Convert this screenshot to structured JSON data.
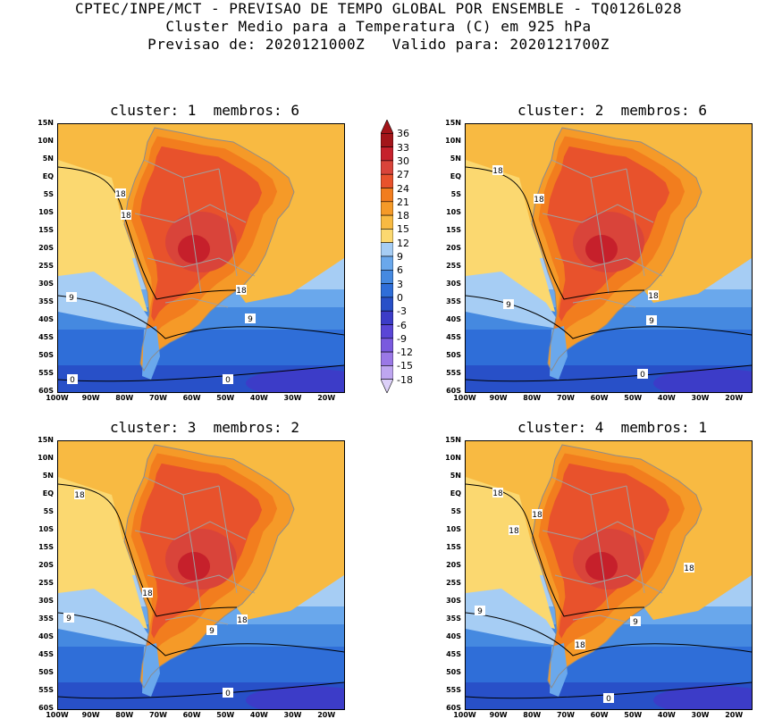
{
  "header": {
    "line1": "CPTEC/INPE/MCT - PREVISAO DE TEMPO GLOBAL POR ENSEMBLE - TQ0126L028",
    "line2": "Cluster Medio para a Temperatura (C) em 925 hPa",
    "line3": "Previsao de: 2020121000Z   Valido para: 2020121700Z"
  },
  "panels": [
    {
      "title": "cluster: 1  membros: 6",
      "contour_labels": [
        "18",
        "18",
        "18",
        "9",
        "9",
        "0",
        "0"
      ]
    },
    {
      "title": "cluster: 2  membros: 6",
      "contour_labels": [
        "18",
        "18",
        "18",
        "9",
        "9",
        "0"
      ]
    },
    {
      "title": "cluster: 3  membros: 2",
      "contour_labels": [
        "18",
        "18",
        "18",
        "9",
        "9",
        "0"
      ]
    },
    {
      "title": "cluster: 4  membros: 1",
      "contour_labels": [
        "18",
        "18",
        "18",
        "18",
        "9",
        "9",
        "18",
        "0"
      ]
    }
  ],
  "axes": {
    "lat_ticks": [
      "15N",
      "10N",
      "5N",
      "EQ",
      "5S",
      "10S",
      "15S",
      "20S",
      "25S",
      "30S",
      "35S",
      "40S",
      "45S",
      "50S",
      "55S",
      "60S"
    ],
    "lon_ticks": [
      "100W",
      "90W",
      "80W",
      "70W",
      "60W",
      "50W",
      "40W",
      "30W",
      "20W"
    ]
  },
  "colorbar": {
    "labels": [
      "36",
      "33",
      "30",
      "27",
      "24",
      "21",
      "18",
      "15",
      "12",
      "9",
      "6",
      "3",
      "0",
      "-3",
      "-6",
      "-9",
      "-12",
      "-15",
      "-18"
    ],
    "colors": [
      "#a3151a",
      "#c6202b",
      "#d9443a",
      "#e8522c",
      "#f27d1e",
      "#f59a28",
      "#f8ba42",
      "#fbd870",
      "#a6cdf4",
      "#6aa8ec",
      "#4589e0",
      "#2f6ed8",
      "#2850c8",
      "#3c3cc8",
      "#5a46d6",
      "#7a5ade",
      "#9a78e6",
      "#bea6f0",
      "#dcd0f8"
    ]
  }
}
